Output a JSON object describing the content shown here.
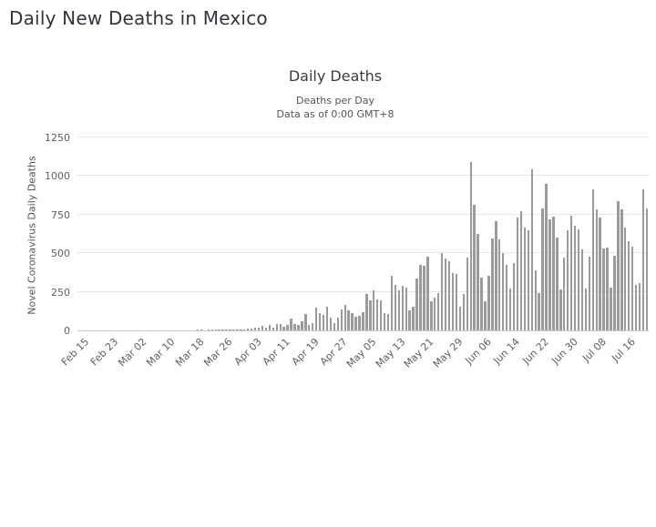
{
  "page": {
    "title": "Daily New Deaths in Mexico"
  },
  "chart": {
    "title": "Daily Deaths",
    "subtitle_line1": "Deaths per Day",
    "subtitle_line2": "Data as of 0:00 GMT+8",
    "y_axis_title": "Novel Coronavirus Daily Deaths"
  },
  "chart_data": {
    "type": "bar",
    "title": "Daily Deaths",
    "subtitle": [
      "Deaths per Day",
      "Data as of 0:00 GMT+8"
    ],
    "xlabel": "",
    "ylabel": "Novel Coronavirus Daily Deaths",
    "ylim": [
      0,
      1250
    ],
    "yticks": [
      0,
      250,
      500,
      750,
      1000,
      1250
    ],
    "grid": true,
    "legend": "none",
    "bar_color": "#9b9b9b",
    "gridline_color": "#e7e7e7",
    "xtick_labels": [
      "Feb 15",
      "Feb 23",
      "Mar 02",
      "Mar 10",
      "Mar 18",
      "Mar 26",
      "Apr 03",
      "Apr 11",
      "Apr 19",
      "Apr 27",
      "May 05",
      "May 13",
      "May 21",
      "May 29",
      "Jun 06",
      "Jun 14",
      "Jun 22",
      "Jun 30",
      "Jul 08",
      "Jul 16"
    ],
    "xtick_interval_days": 8,
    "categories": [
      "Feb 15",
      "Feb 16",
      "Feb 17",
      "Feb 18",
      "Feb 19",
      "Feb 20",
      "Feb 21",
      "Feb 22",
      "Feb 23",
      "Feb 24",
      "Feb 25",
      "Feb 26",
      "Feb 27",
      "Feb 28",
      "Feb 29",
      "Mar 01",
      "Mar 02",
      "Mar 03",
      "Mar 04",
      "Mar 05",
      "Mar 06",
      "Mar 07",
      "Mar 08",
      "Mar 09",
      "Mar 10",
      "Mar 11",
      "Mar 12",
      "Mar 13",
      "Mar 14",
      "Mar 15",
      "Mar 16",
      "Mar 17",
      "Mar 18",
      "Mar 19",
      "Mar 20",
      "Mar 21",
      "Mar 22",
      "Mar 23",
      "Mar 24",
      "Mar 25",
      "Mar 26",
      "Mar 27",
      "Mar 28",
      "Mar 29",
      "Mar 30",
      "Mar 31",
      "Apr 01",
      "Apr 02",
      "Apr 03",
      "Apr 04",
      "Apr 05",
      "Apr 06",
      "Apr 07",
      "Apr 08",
      "Apr 09",
      "Apr 10",
      "Apr 11",
      "Apr 12",
      "Apr 13",
      "Apr 14",
      "Apr 15",
      "Apr 16",
      "Apr 17",
      "Apr 18",
      "Apr 19",
      "Apr 20",
      "Apr 21",
      "Apr 22",
      "Apr 23",
      "Apr 24",
      "Apr 25",
      "Apr 26",
      "Apr 27",
      "Apr 28",
      "Apr 29",
      "Apr 30",
      "May 01",
      "May 02",
      "May 03",
      "May 04",
      "May 05",
      "May 06",
      "May 07",
      "May 08",
      "May 09",
      "May 10",
      "May 11",
      "May 12",
      "May 13",
      "May 14",
      "May 15",
      "May 16",
      "May 17",
      "May 18",
      "May 19",
      "May 20",
      "May 21",
      "May 22",
      "May 23",
      "May 24",
      "May 25",
      "May 26",
      "May 27",
      "May 28",
      "May 29",
      "May 30",
      "May 31",
      "Jun 01",
      "Jun 02",
      "Jun 03",
      "Jun 04",
      "Jun 05",
      "Jun 06",
      "Jun 07",
      "Jun 08",
      "Jun 09",
      "Jun 10",
      "Jun 11",
      "Jun 12",
      "Jun 13",
      "Jun 14",
      "Jun 15",
      "Jun 16",
      "Jun 17",
      "Jun 18",
      "Jun 19",
      "Jun 20",
      "Jun 21",
      "Jun 22",
      "Jun 23",
      "Jun 24",
      "Jun 25",
      "Jun 26",
      "Jun 27",
      "Jun 28",
      "Jun 29",
      "Jun 30",
      "Jul 01",
      "Jul 02",
      "Jul 03",
      "Jul 04",
      "Jul 05",
      "Jul 06",
      "Jul 07",
      "Jul 08",
      "Jul 09",
      "Jul 10",
      "Jul 11",
      "Jul 12",
      "Jul 13",
      "Jul 14",
      "Jul 15",
      "Jul 16",
      "Jul 17",
      "Jul 18",
      "Jul 19",
      "Jul 20",
      "Jul 21",
      "Jul 22"
    ],
    "values": [
      0,
      0,
      0,
      0,
      0,
      0,
      0,
      0,
      0,
      0,
      0,
      0,
      0,
      0,
      0,
      0,
      0,
      0,
      0,
      0,
      0,
      0,
      0,
      0,
      0,
      0,
      0,
      0,
      0,
      0,
      0,
      0,
      0,
      1,
      1,
      0,
      1,
      1,
      1,
      1,
      2,
      4,
      4,
      4,
      8,
      1,
      8,
      13,
      10,
      19,
      15,
      31,
      16,
      33,
      20,
      39,
      40,
      23,
      36,
      74,
      43,
      37,
      60,
      104,
      36,
      50,
      145,
      113,
      99,
      152,
      84,
      46,
      83,
      135,
      163,
      127,
      113,
      89,
      93,
      117,
      236,
      197,
      257,
      199,
      193,
      112,
      108,
      353,
      294,
      257,
      290,
      278,
      132,
      155,
      334,
      424,
      420,
      479,
      190,
      215,
      239,
      501,
      463,
      447,
      371,
      364,
      151,
      237,
      470,
      1092,
      816,
      625,
      341,
      188,
      354,
      596,
      708,
      587,
      504,
      424,
      269,
      439,
      730,
      770,
      667,
      647,
      1044,
      388,
      239,
      793,
      947,
      719,
      736,
      602,
      267,
      473,
      648,
      741,
      679,
      654,
      523,
      273,
      480,
      915,
      784,
      730,
      532,
      539,
      276,
      485,
      836,
      782,
      669,
      578,
      544,
      296,
      306,
      915,
      790
    ]
  }
}
